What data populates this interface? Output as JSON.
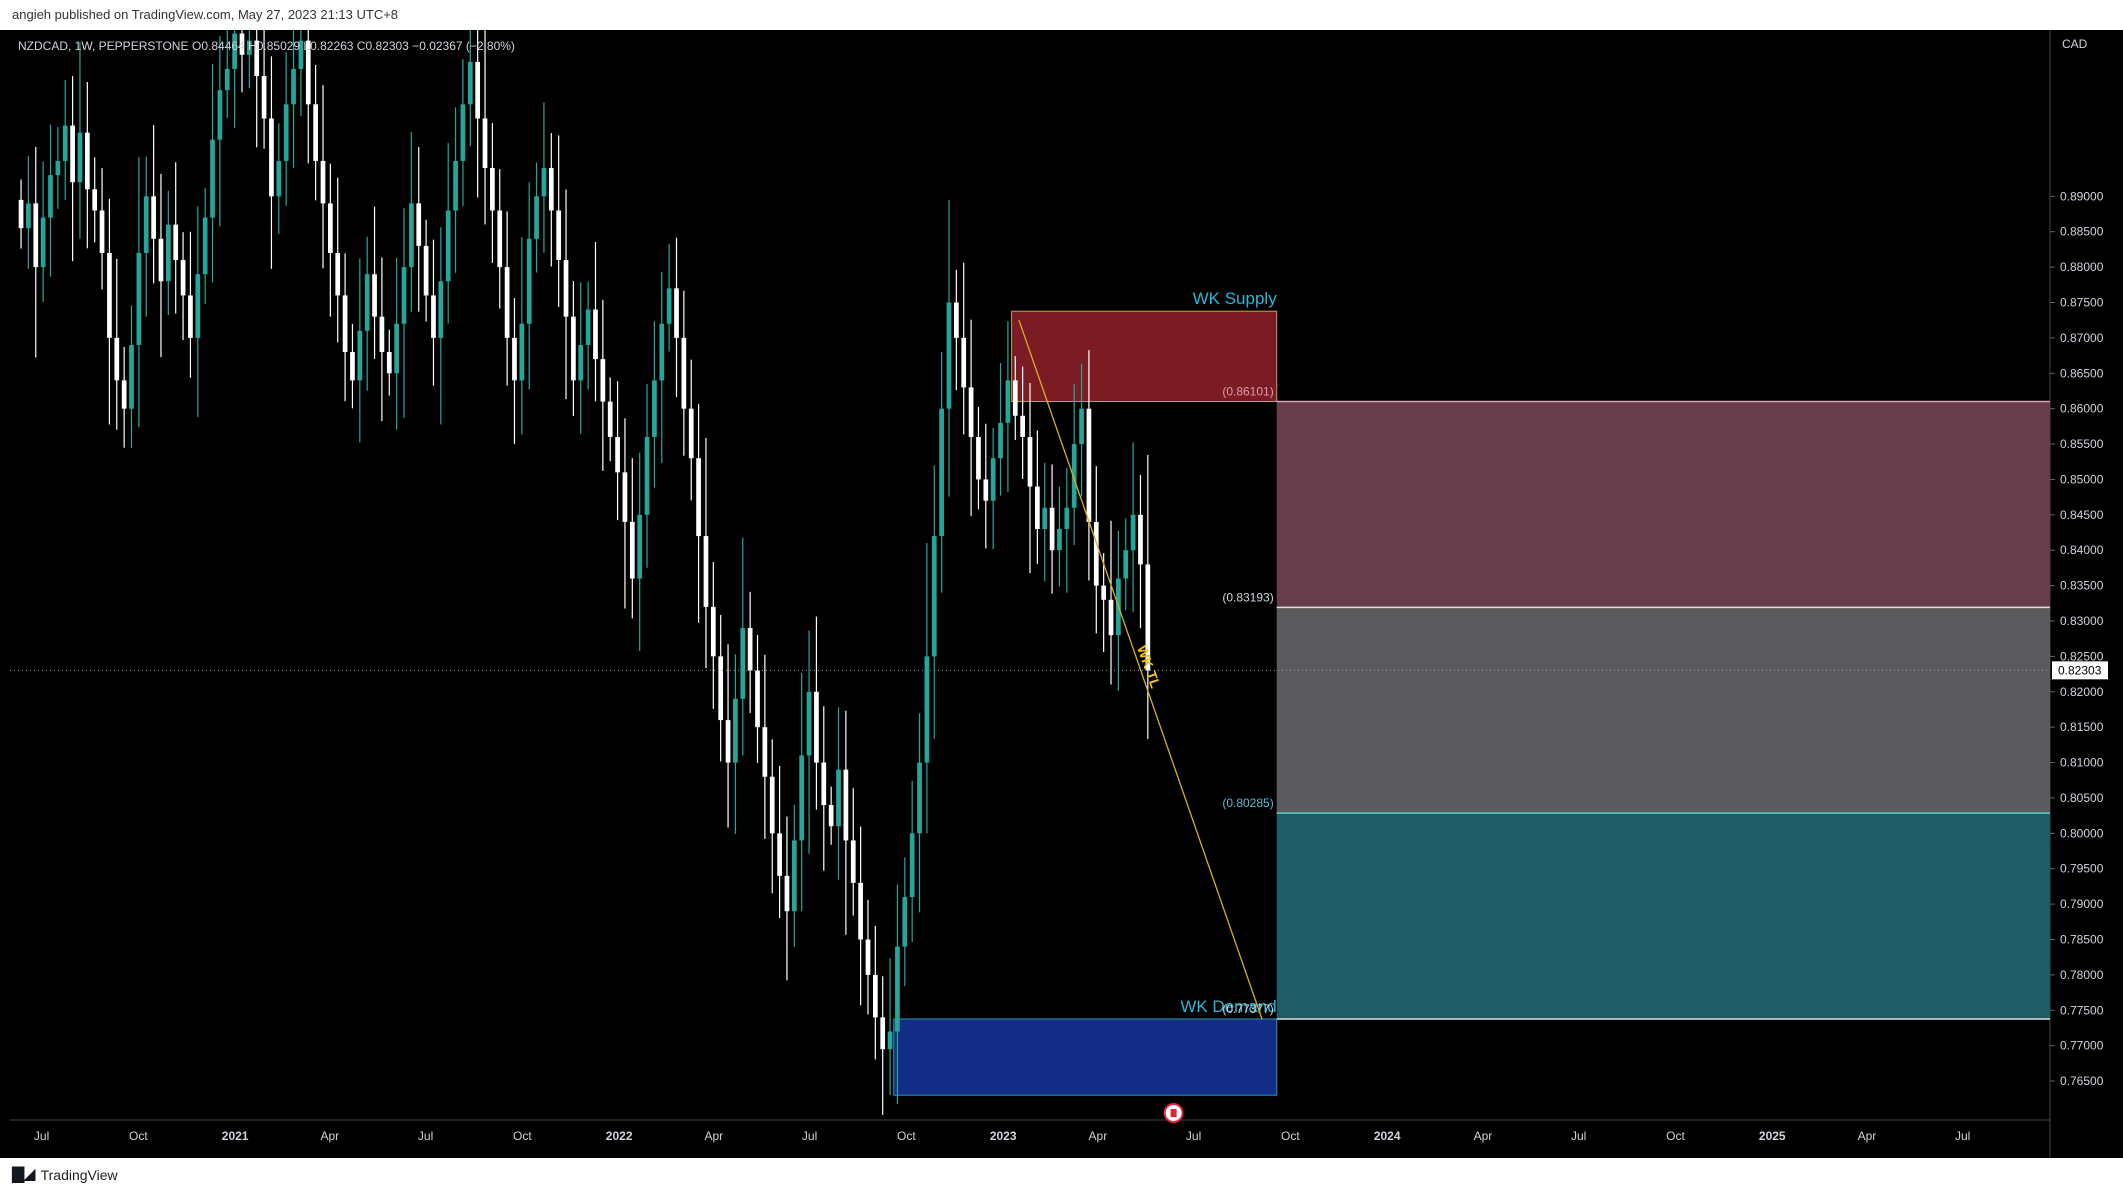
{
  "header": {
    "published_text": "angieh published on TradingView.com, May 27, 2023 21:13 UTC+8"
  },
  "footer": {
    "brand_label": "TradingView",
    "logo_icon": "tradingview-logo-icon"
  },
  "legend": {
    "symbol": "NZDCAD, 1W, PEPPERSTONE",
    "ohlc": "O0.84464 H0.85029 L0.82263 C0.82303 −0.02367 (−2.80%)"
  },
  "colors": {
    "background": "#000000",
    "bull": "#26a69a",
    "bear": "#ffffff",
    "supply_zone": "#7b1c24",
    "demand_zone": "#142d86",
    "fib_top": "#673d4b",
    "fib_mid": "#5b5b5d",
    "fib_bottom": "#1f5c66",
    "trendline": "#d4b024",
    "label_cyan": "#2ab7d8"
  },
  "chart_data": {
    "type": "candlestick",
    "symbol": "NZDCAD",
    "timeframe": "1W",
    "currency_label": "CAD",
    "ylim": [
      0.7595,
      0.9135
    ],
    "xlim": [
      "2020-06-01",
      "2025-09-22"
    ],
    "price_ticks": [
      "0.89000",
      "0.88500",
      "0.88000",
      "0.87500",
      "0.87000",
      "0.86500",
      "0.86000",
      "0.85500",
      "0.85000",
      "0.84500",
      "0.84000",
      "0.83500",
      "0.83000",
      "0.82500",
      "0.82000",
      "0.81500",
      "0.81000",
      "0.80500",
      "0.80000",
      "0.79500",
      "0.79000",
      "0.78500",
      "0.78000",
      "0.77500",
      "0.77000",
      "0.76500"
    ],
    "time_ticks": [
      {
        "label": "Jul",
        "date": "2020-07-01",
        "major": false
      },
      {
        "label": "Oct",
        "date": "2020-10-01",
        "major": false
      },
      {
        "label": "2021",
        "date": "2021-01-01",
        "major": true
      },
      {
        "label": "Apr",
        "date": "2021-04-01",
        "major": false
      },
      {
        "label": "Jul",
        "date": "2021-07-01",
        "major": false
      },
      {
        "label": "Oct",
        "date": "2021-10-01",
        "major": false
      },
      {
        "label": "2022",
        "date": "2022-01-01",
        "major": true
      },
      {
        "label": "Apr",
        "date": "2022-04-01",
        "major": false
      },
      {
        "label": "Jul",
        "date": "2022-07-01",
        "major": false
      },
      {
        "label": "Oct",
        "date": "2022-10-01",
        "major": false
      },
      {
        "label": "2023",
        "date": "2023-01-01",
        "major": true
      },
      {
        "label": "Apr",
        "date": "2023-04-01",
        "major": false
      },
      {
        "label": "Jul",
        "date": "2023-07-01",
        "major": false
      },
      {
        "label": "Oct",
        "date": "2023-10-01",
        "major": false
      },
      {
        "label": "2024",
        "date": "2024-01-01",
        "major": true
      },
      {
        "label": "Apr",
        "date": "2024-04-01",
        "major": false
      },
      {
        "label": "Jul",
        "date": "2024-07-01",
        "major": false
      },
      {
        "label": "Oct",
        "date": "2024-10-01",
        "major": false
      },
      {
        "label": "2025",
        "date": "2025-01-01",
        "major": true
      },
      {
        "label": "Apr",
        "date": "2025-04-01",
        "major": false
      },
      {
        "label": "Jul",
        "date": "2025-07-01",
        "major": false
      }
    ],
    "current_price": 0.82303,
    "current_price_label": "0.82303",
    "first_candle_date": "2020-06-08",
    "candles_close": [
      0.8855,
      0.889,
      0.88,
      0.887,
      0.893,
      0.895,
      0.9,
      0.892,
      0.899,
      0.891,
      0.888,
      0.882,
      0.87,
      0.864,
      0.86,
      0.869,
      0.882,
      0.89,
      0.884,
      0.878,
      0.886,
      0.881,
      0.876,
      0.87,
      0.879,
      0.887,
      0.898,
      0.905,
      0.908,
      0.913,
      0.91,
      0.912,
      0.907,
      0.901,
      0.89,
      0.895,
      0.903,
      0.908,
      0.912,
      0.903,
      0.895,
      0.889,
      0.882,
      0.876,
      0.868,
      0.864,
      0.871,
      0.879,
      0.873,
      0.868,
      0.865,
      0.872,
      0.88,
      0.889,
      0.883,
      0.876,
      0.87,
      0.878,
      0.888,
      0.895,
      0.903,
      0.909,
      0.901,
      0.894,
      0.888,
      0.88,
      0.87,
      0.864,
      0.872,
      0.884,
      0.89,
      0.894,
      0.888,
      0.881,
      0.873,
      0.864,
      0.869,
      0.874,
      0.867,
      0.861,
      0.856,
      0.851,
      0.844,
      0.836,
      0.845,
      0.856,
      0.864,
      0.872,
      0.877,
      0.87,
      0.86,
      0.853,
      0.842,
      0.832,
      0.825,
      0.816,
      0.81,
      0.819,
      0.829,
      0.823,
      0.815,
      0.808,
      0.8,
      0.794,
      0.789,
      0.799,
      0.811,
      0.82,
      0.81,
      0.804,
      0.801,
      0.809,
      0.799,
      0.793,
      0.785,
      0.78,
      0.774,
      0.7695,
      0.772,
      0.784,
      0.791,
      0.8,
      0.81,
      0.825,
      0.842,
      0.86,
      0.875,
      0.87,
      0.863,
      0.856,
      0.85,
      0.847,
      0.853,
      0.858,
      0.864,
      0.859,
      0.856,
      0.849,
      0.843,
      0.846,
      0.84,
      0.843,
      0.846,
      0.855,
      0.86,
      0.844,
      0.835,
      0.833,
      0.828,
      0.836,
      0.84,
      0.845,
      0.838,
      0.823
    ],
    "price_path_points": [
      {
        "date": "2020-06-01",
        "price": 0.885
      },
      {
        "date": "2020-10-01",
        "price": 0.862
      },
      {
        "date": "2021-03-01",
        "price": 0.913
      },
      {
        "date": "2021-09-01",
        "price": 0.866
      },
      {
        "date": "2021-12-01",
        "price": 0.875
      },
      {
        "date": "2022-03-01",
        "price": 0.836
      },
      {
        "date": "2022-04-18",
        "price": 0.877
      },
      {
        "date": "2022-10-10",
        "price": 0.7655
      },
      {
        "date": "2022-12-12",
        "price": 0.881
      },
      {
        "date": "2023-05-22",
        "price": 0.823
      }
    ],
    "zones": [
      {
        "label": "WK Supply",
        "from": "2023-01-09",
        "to": "2023-09-18",
        "top": 0.87377,
        "bottom": 0.86101
      },
      {
        "label": "WK Demand",
        "from": "2022-09-19",
        "to": "2023-09-18",
        "top": 0.77377,
        "bottom": 0.763
      }
    ],
    "trendline": {
      "label": "WK TL",
      "from": {
        "date": "2023-01-16",
        "price": 0.8725
      },
      "to": {
        "date": "2023-09-04",
        "price": 0.77377
      }
    },
    "fib_levels": [
      {
        "label": "(0.86101)",
        "price": 0.86101
      },
      {
        "label": "(0.83193)",
        "price": 0.83193
      },
      {
        "label": "(0.80285)",
        "price": 0.80285
      },
      {
        "label": "(0.77377)",
        "price": 0.77377
      }
    ],
    "fib_band_from": "2023-09-18",
    "event_icon": "canada-flag-icon",
    "event_date": "2023-06-12"
  }
}
